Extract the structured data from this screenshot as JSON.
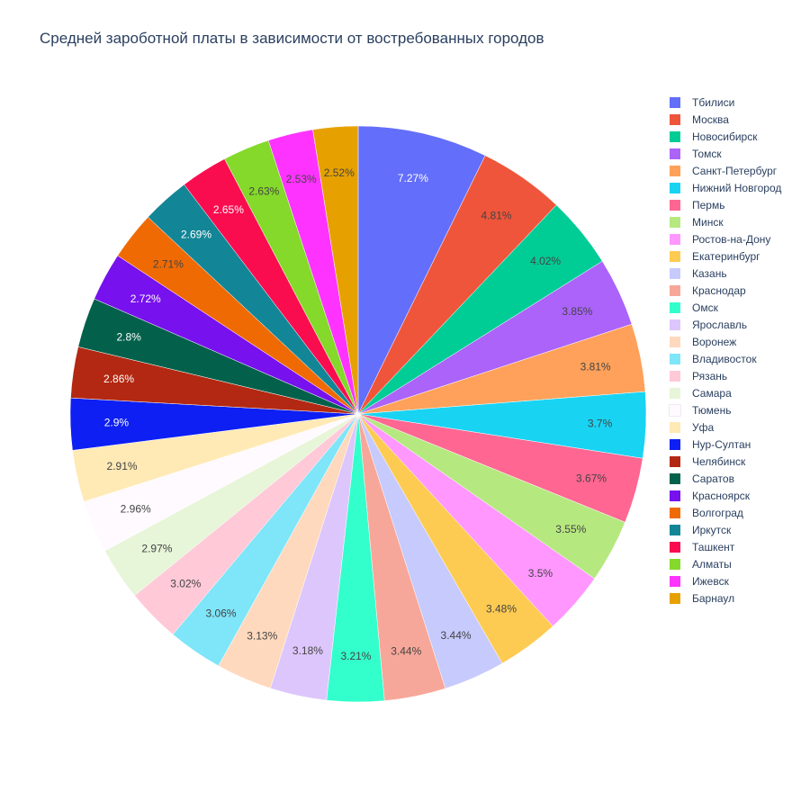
{
  "chart_data": {
    "type": "pie",
    "title": "Средней зароботной платы в зависимости от востребованных городов",
    "slices": [
      {
        "label": "Тбилиси",
        "value": 7.27,
        "text": "7.27%",
        "color": "#636efa",
        "text_color": "#ffffff"
      },
      {
        "label": "Москва",
        "value": 4.81,
        "text": "4.81%",
        "color": "#ef553b",
        "text_color": "#444444"
      },
      {
        "label": "Новосибирск",
        "value": 4.02,
        "text": "4.02%",
        "color": "#00cc96",
        "text_color": "#444444"
      },
      {
        "label": "Томск",
        "value": 3.85,
        "text": "3.85%",
        "color": "#ab63fa",
        "text_color": "#444444"
      },
      {
        "label": "Санкт-Петербург",
        "value": 3.81,
        "text": "3.81%",
        "color": "#ffa15a",
        "text_color": "#444444"
      },
      {
        "label": "Нижний Новгород",
        "value": 3.7,
        "text": "3.7%",
        "color": "#19d3f3",
        "text_color": "#444444"
      },
      {
        "label": "Пермь",
        "value": 3.67,
        "text": "3.67%",
        "color": "#ff6692",
        "text_color": "#444444"
      },
      {
        "label": "Минск",
        "value": 3.55,
        "text": "3.55%",
        "color": "#b6e880",
        "text_color": "#444444"
      },
      {
        "label": "Ростов-на-Дону",
        "value": 3.5,
        "text": "3.5%",
        "color": "#ff97ff",
        "text_color": "#444444"
      },
      {
        "label": "Екатеринбург",
        "value": 3.48,
        "text": "3.48%",
        "color": "#fecb52",
        "text_color": "#444444"
      },
      {
        "label": "Казань",
        "value": 3.44,
        "text": "3.44%",
        "color": "#c6cafd",
        "text_color": "#444444"
      },
      {
        "label": "Краснодар",
        "value": 3.44,
        "text": "3.44%",
        "color": "#f7a799",
        "text_color": "#444444"
      },
      {
        "label": "Омск",
        "value": 3.21,
        "text": "3.21%",
        "color": "#33ffcc",
        "text_color": "#444444"
      },
      {
        "label": "Ярославль",
        "value": 3.18,
        "text": "3.18%",
        "color": "#ddc6fc",
        "text_color": "#444444"
      },
      {
        "label": "Воронеж",
        "value": 3.13,
        "text": "3.13%",
        "color": "#ffd9bd",
        "text_color": "#444444"
      },
      {
        "label": "Владивосток",
        "value": 3.06,
        "text": "3.06%",
        "color": "#7fe5f8",
        "text_color": "#444444"
      },
      {
        "label": "Рязань",
        "value": 3.02,
        "text": "3.02%",
        "color": "#ffc9d8",
        "text_color": "#444444"
      },
      {
        "label": "Самара",
        "value": 2.97,
        "text": "2.97%",
        "color": "#e7f5d8",
        "text_color": "#444444"
      },
      {
        "label": "Тюмень",
        "value": 2.96,
        "text": "2.96%",
        "color": "#fffaff",
        "text_color": "#444444"
      },
      {
        "label": "Уфа",
        "value": 2.91,
        "text": "2.91%",
        "color": "#ffe9b5",
        "text_color": "#444444"
      },
      {
        "label": "Нур-Султан",
        "value": 2.9,
        "text": "2.9%",
        "color": "#0d1ff2",
        "text_color": "#ffffff"
      },
      {
        "label": "Челябинск",
        "value": 2.86,
        "text": "2.86%",
        "color": "#b32812",
        "text_color": "#ffffff"
      },
      {
        "label": "Саратов",
        "value": 2.8,
        "text": "2.8%",
        "color": "#03614b",
        "text_color": "#ffffff"
      },
      {
        "label": "Красноярск",
        "value": 2.72,
        "text": "2.72%",
        "color": "#7711ee",
        "text_color": "#ffffff"
      },
      {
        "label": "Волгоград",
        "value": 2.71,
        "text": "2.71%",
        "color": "#f06a04",
        "text_color": "#444444"
      },
      {
        "label": "Иркутск",
        "value": 2.69,
        "text": "2.69%",
        "color": "#128696",
        "text_color": "#ffffff"
      },
      {
        "label": "Ташкент",
        "value": 2.65,
        "text": "2.65%",
        "color": "#fa0d4f",
        "text_color": "#ffffff"
      },
      {
        "label": "Алматы",
        "value": 2.63,
        "text": "2.63%",
        "color": "#84d92a",
        "text_color": "#444444"
      },
      {
        "label": "Ижевск",
        "value": 2.53,
        "text": "2.53%",
        "color": "#ff33ff",
        "text_color": "#444444"
      },
      {
        "label": "Барнаул",
        "value": 2.52,
        "text": "2.52%",
        "color": "#e6a100",
        "text_color": "#444444"
      }
    ],
    "start_angle": "top",
    "direction": "clockwise",
    "legend_position": "right"
  }
}
